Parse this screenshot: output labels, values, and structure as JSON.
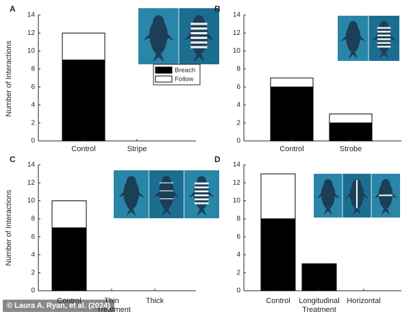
{
  "chart_data": [
    {
      "type": "bar",
      "stacked": true,
      "panel_label": "A",
      "categories": [
        "Control",
        "Stripe"
      ],
      "series": [
        {
          "name": "Breach",
          "values": [
            9,
            0
          ]
        },
        {
          "name": "Follow",
          "values": [
            3,
            0
          ]
        }
      ],
      "ylabel": "Number of Interactions",
      "xlabel": "",
      "ylim": [
        0,
        14
      ],
      "yticks": [
        0,
        2,
        4,
        6,
        8,
        10,
        12,
        14
      ],
      "legend": "right"
    },
    {
      "type": "bar",
      "stacked": true,
      "panel_label": "B",
      "categories": [
        "Control",
        "Strobe"
      ],
      "series": [
        {
          "name": "Breach",
          "values": [
            6,
            2
          ]
        },
        {
          "name": "Follow",
          "values": [
            1,
            1
          ]
        }
      ],
      "ylabel": "",
      "xlabel": "",
      "ylim": [
        0,
        14
      ],
      "yticks": [
        0,
        2,
        4,
        6,
        8,
        10,
        12,
        14
      ]
    },
    {
      "type": "bar",
      "stacked": true,
      "panel_label": "C",
      "categories": [
        "Control",
        "Thin",
        "Thick"
      ],
      "series": [
        {
          "name": "Breach",
          "values": [
            7,
            0,
            0
          ]
        },
        {
          "name": "Follow",
          "values": [
            3,
            0,
            0
          ]
        }
      ],
      "ylabel": "Number of Interactions",
      "xlabel": "Treatment",
      "ylim": [
        0,
        14
      ],
      "yticks": [
        0,
        2,
        4,
        6,
        8,
        10,
        12,
        14
      ]
    },
    {
      "type": "bar",
      "stacked": true,
      "panel_label": "D",
      "categories": [
        "Control",
        "Longitudinal",
        "Horizontal"
      ],
      "series": [
        {
          "name": "Breach",
          "values": [
            8,
            3,
            0
          ]
        },
        {
          "name": "Follow",
          "values": [
            5,
            0,
            0
          ]
        }
      ],
      "ylabel": "",
      "xlabel": "Treatment",
      "ylim": [
        0,
        14
      ],
      "yticks": [
        0,
        2,
        4,
        6,
        8,
        10,
        12,
        14
      ]
    }
  ],
  "colors": {
    "breach": "#000000",
    "follow": "#ffffff",
    "photo_water": "#2a86a9",
    "photo_water_dark": "#1c6e90",
    "seal": "#1b3f57"
  },
  "credit": "© Laura A. Ryan, et al. (2024)"
}
